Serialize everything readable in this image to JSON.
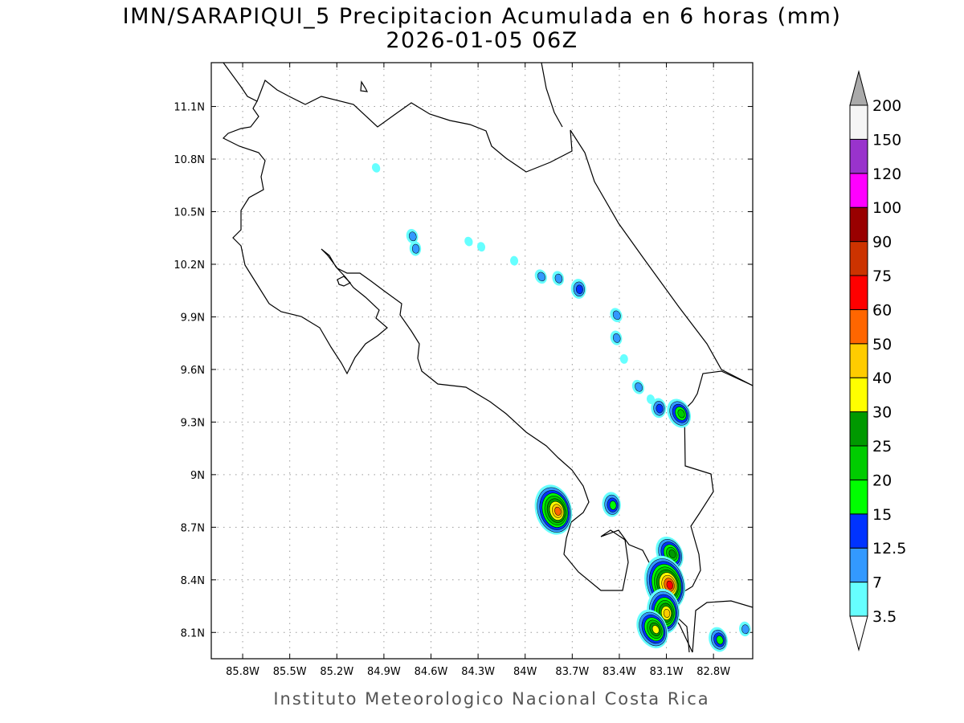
{
  "title": {
    "line1": "IMN/SARAPIQUI_5 Precipitacion Acumulada en 6 horas (mm)",
    "line2": "2026-01-05 06Z"
  },
  "footer": "Instituto Meteorologico Nacional Costa Rica",
  "map": {
    "lon_range": [
      -86.0,
      -82.55
    ],
    "lat_range": [
      7.95,
      11.35
    ],
    "lon_ticks": [
      {
        "value": -85.8,
        "label": "85.8W"
      },
      {
        "value": -85.5,
        "label": "85.5W"
      },
      {
        "value": -85.2,
        "label": "85.2W"
      },
      {
        "value": -84.9,
        "label": "84.9W"
      },
      {
        "value": -84.6,
        "label": "84.6W"
      },
      {
        "value": -84.3,
        "label": "84.3W"
      },
      {
        "value": -84.0,
        "label": "84W"
      },
      {
        "value": -83.7,
        "label": "83.7W"
      },
      {
        "value": -83.4,
        "label": "83.4W"
      },
      {
        "value": -83.1,
        "label": "83.1W"
      },
      {
        "value": -82.8,
        "label": "82.8W"
      }
    ],
    "lat_ticks": [
      {
        "value": 11.1,
        "label": "11.1N"
      },
      {
        "value": 10.8,
        "label": "10.8N"
      },
      {
        "value": 10.5,
        "label": "10.5N"
      },
      {
        "value": 10.2,
        "label": "10.2N"
      },
      {
        "value": 9.9,
        "label": "9.9N"
      },
      {
        "value": 9.6,
        "label": "9.6N"
      },
      {
        "value": 9.3,
        "label": "9.3N"
      },
      {
        "value": 9.0,
        "label": "9N"
      },
      {
        "value": 8.7,
        "label": "8.7N"
      },
      {
        "value": 8.4,
        "label": "8.4N"
      },
      {
        "value": 8.1,
        "label": "8.1N"
      }
    ],
    "precip_cells": [
      {
        "lon": -84.95,
        "lat": 10.75,
        "level": 0
      },
      {
        "lon": -84.72,
        "lat": 10.36,
        "level": 1
      },
      {
        "lon": -84.7,
        "lat": 10.29,
        "level": 1
      },
      {
        "lon": -84.36,
        "lat": 10.33,
        "level": 0
      },
      {
        "lon": -84.28,
        "lat": 10.3,
        "level": 0
      },
      {
        "lon": -84.07,
        "lat": 10.22,
        "level": 0
      },
      {
        "lon": -83.9,
        "lat": 10.13,
        "level": 1
      },
      {
        "lon": -83.79,
        "lat": 10.12,
        "level": 1
      },
      {
        "lon": -83.66,
        "lat": 10.06,
        "level": 2
      },
      {
        "lon": -83.42,
        "lat": 9.91,
        "level": 1
      },
      {
        "lon": -83.42,
        "lat": 9.78,
        "level": 1
      },
      {
        "lon": -83.37,
        "lat": 9.66,
        "level": 0
      },
      {
        "lon": -83.28,
        "lat": 9.5,
        "level": 1
      },
      {
        "lon": -83.2,
        "lat": 9.43,
        "level": 0
      },
      {
        "lon": -83.15,
        "lat": 9.38,
        "level": 2
      },
      {
        "lon": -83.02,
        "lat": 9.35,
        "level": 4
      },
      {
        "lon": -83.82,
        "lat": 8.8,
        "level": 8
      },
      {
        "lon": -83.45,
        "lat": 8.83,
        "level": 3
      },
      {
        "lon": -83.08,
        "lat": 8.55,
        "level": 5
      },
      {
        "lon": -83.11,
        "lat": 8.38,
        "level": 9
      },
      {
        "lon": -83.12,
        "lat": 8.22,
        "level": 7
      },
      {
        "lon": -83.19,
        "lat": 8.12,
        "level": 6
      },
      {
        "lon": -82.77,
        "lat": 8.06,
        "level": 3
      },
      {
        "lon": -82.6,
        "lat": 8.12,
        "level": 1
      }
    ]
  },
  "colorbar": {
    "colors": [
      "#66ffff",
      "#3399ff",
      "#0033ff",
      "#00ff00",
      "#00cc00",
      "#009900",
      "#ffff00",
      "#ffcc00",
      "#ff6600",
      "#ff0000",
      "#cc3300",
      "#990000",
      "#ff00ff",
      "#9933cc",
      "#f5f5f5",
      "#aaaaaa"
    ],
    "labels": [
      "3.5",
      "7",
      "12.5",
      "15",
      "20",
      "25",
      "30",
      "40",
      "50",
      "60",
      "75",
      "90",
      "100",
      "120",
      "150",
      "200"
    ]
  }
}
